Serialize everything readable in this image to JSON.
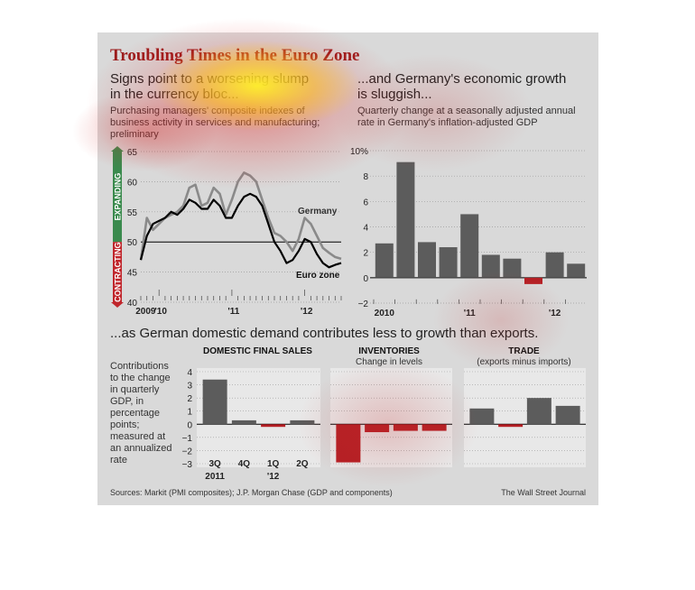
{
  "title": "Troubling Times in the Euro Zone",
  "left": {
    "heading": [
      "Signs point to a worsening slump",
      "in the currency bloc..."
    ],
    "subheading": [
      "Purchasing managers' composite indexes of",
      "business activity in services and manufacturing;",
      "preliminary"
    ],
    "expanding_label": "EXPANDING",
    "contracting_label": "CONTRACTING"
  },
  "right": {
    "heading": [
      "...and Germany's economic growth",
      "is sluggish..."
    ],
    "subheading": [
      "Quarterly change at a seasonally adjusted annual",
      "rate in Germany's inflation-adjusted GDP"
    ]
  },
  "bottom": {
    "heading": "...as German domestic demand contributes less to growth than exports.",
    "ylabel": [
      "Contributions",
      "to the change",
      "in quarterly",
      "GDP, in",
      "percentage",
      "points;",
      "measured at",
      "an annualized",
      "rate"
    ]
  },
  "footer": {
    "source": "Sources: Markit (PMI composites); J.P. Morgan Chase (GDP and components)",
    "credit": "The Wall Street Journal"
  },
  "colors": {
    "title": "#9b1c1c",
    "bar": "#5c5c5c",
    "negative": "#b52025",
    "germany_line": "#8a8a8a",
    "eurozone_line": "#000000",
    "expanding": "#3a8a4d",
    "contracting": "#c0262c"
  },
  "chart_data": [
    {
      "type": "line",
      "ylim": [
        40,
        65
      ],
      "yticks": [
        40,
        45,
        50,
        55,
        60,
        65
      ],
      "xticks": [
        {
          "t": 0.5,
          "label": "2009"
        },
        {
          "t": 3,
          "label": "'10"
        },
        {
          "t": 15,
          "label": "'11"
        },
        {
          "t": 27,
          "label": "'12"
        }
      ],
      "reference_line": 50,
      "series": [
        {
          "name": "Germany",
          "values": [
            47,
            54,
            52,
            53,
            54,
            54.5,
            55,
            56,
            59,
            59.5,
            56,
            56.5,
            59,
            58,
            54.5,
            57,
            60,
            61.5,
            61,
            60,
            57,
            54,
            51.5,
            51,
            50,
            48.5,
            50.5,
            54,
            53,
            51,
            49,
            48.2,
            47.5,
            47.2
          ]
        },
        {
          "name": "Euro zone",
          "values": [
            47,
            51,
            53,
            53.5,
            54,
            55,
            54.5,
            55.5,
            57,
            56.5,
            55.5,
            55.5,
            57,
            56,
            54,
            54,
            56,
            57.5,
            58,
            57.5,
            56,
            53,
            50,
            48.5,
            46.5,
            47,
            48.5,
            50.5,
            50,
            48,
            46.5,
            45.8,
            46.2,
            46.5
          ]
        }
      ]
    },
    {
      "type": "bar",
      "ylim": [
        -2,
        10
      ],
      "yticks": [
        -2,
        0,
        2,
        4,
        6,
        8,
        10
      ],
      "ytick_labels": [
        "−2",
        "0",
        "2",
        "4",
        "6",
        "8",
        "10%"
      ],
      "categories": [
        "2010 Q1",
        "2010 Q2",
        "2010 Q3",
        "2010 Q4",
        "2011 Q1",
        "2011 Q2",
        "2011 Q3",
        "2011 Q4",
        "2012 Q1",
        "2012 Q2"
      ],
      "values": [
        2.7,
        9.1,
        2.8,
        2.4,
        5.0,
        1.8,
        1.5,
        -0.5,
        2.0,
        1.1
      ],
      "xticks": [
        {
          "index": 0,
          "label": "2010"
        },
        {
          "index": 4,
          "label": "'11"
        },
        {
          "index": 8,
          "label": "'12"
        }
      ]
    },
    {
      "type": "bar",
      "ylim": [
        -3,
        4
      ],
      "yticks": [
        -3,
        -2,
        -1,
        0,
        1,
        2,
        3,
        4
      ],
      "ytick_labels": [
        "−3",
        "−2",
        "−1",
        "0",
        "1",
        "2",
        "3",
        "4"
      ],
      "categories": [
        "3Q 2011",
        "4Q",
        "1Q '12",
        "2Q"
      ],
      "category_labels_top": [
        "3Q",
        "4Q",
        "1Q",
        "2Q"
      ],
      "category_labels_bottom": [
        "2011",
        "",
        "'12",
        ""
      ],
      "groups": [
        {
          "name": "DOMESTIC FINAL SALES",
          "subtitle": "",
          "values": [
            3.4,
            0.3,
            -0.2,
            0.3
          ]
        },
        {
          "name": "INVENTORIES",
          "subtitle": "Change in levels",
          "values": [
            -2.9,
            -0.6,
            -0.5,
            -0.5
          ]
        },
        {
          "name": "TRADE",
          "subtitle": "(exports minus imports)",
          "values": [
            1.2,
            -0.2,
            2.0,
            1.4
          ]
        }
      ]
    }
  ]
}
